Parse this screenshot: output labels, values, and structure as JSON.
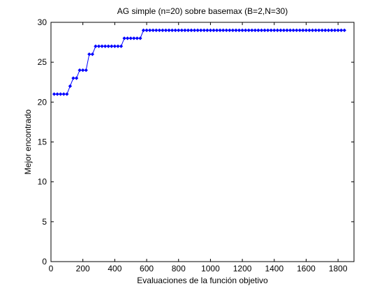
{
  "chart_data": {
    "type": "line",
    "title": "AG simple (n=20) sobre basemax (B=2,N=30)",
    "xlabel": "Evaluaciones de la función objetivo",
    "ylabel": "Mejor encontrado",
    "xlim": [
      0,
      1900
    ],
    "ylim": [
      0,
      30
    ],
    "xticks": [
      0,
      200,
      400,
      600,
      800,
      1000,
      1200,
      1400,
      1600,
      1800
    ],
    "yticks": [
      0,
      5,
      10,
      15,
      20,
      25,
      30
    ],
    "grid": false,
    "legend": "none",
    "series": [
      {
        "color": "#0000ff",
        "marker": "diamond",
        "x_start": 20,
        "x_step": 20,
        "values": [
          21,
          21,
          21,
          21,
          21,
          22,
          23,
          23,
          24,
          24,
          24,
          26,
          26,
          27,
          27,
          27,
          27,
          27,
          27,
          27,
          27,
          27,
          28,
          28,
          28,
          28,
          28,
          28,
          29,
          29,
          29,
          29,
          29,
          29,
          29,
          29,
          29,
          29,
          29,
          29,
          29,
          29,
          29,
          29,
          29,
          29,
          29,
          29,
          29,
          29,
          29,
          29,
          29,
          29,
          29,
          29,
          29,
          29,
          29,
          29,
          29,
          29,
          29,
          29,
          29,
          29,
          29,
          29,
          29,
          29,
          29,
          29,
          29,
          29,
          29,
          29,
          29,
          29,
          29,
          29,
          29,
          29,
          29,
          29,
          29,
          29,
          29,
          29,
          29,
          29,
          29,
          29
        ]
      }
    ]
  }
}
